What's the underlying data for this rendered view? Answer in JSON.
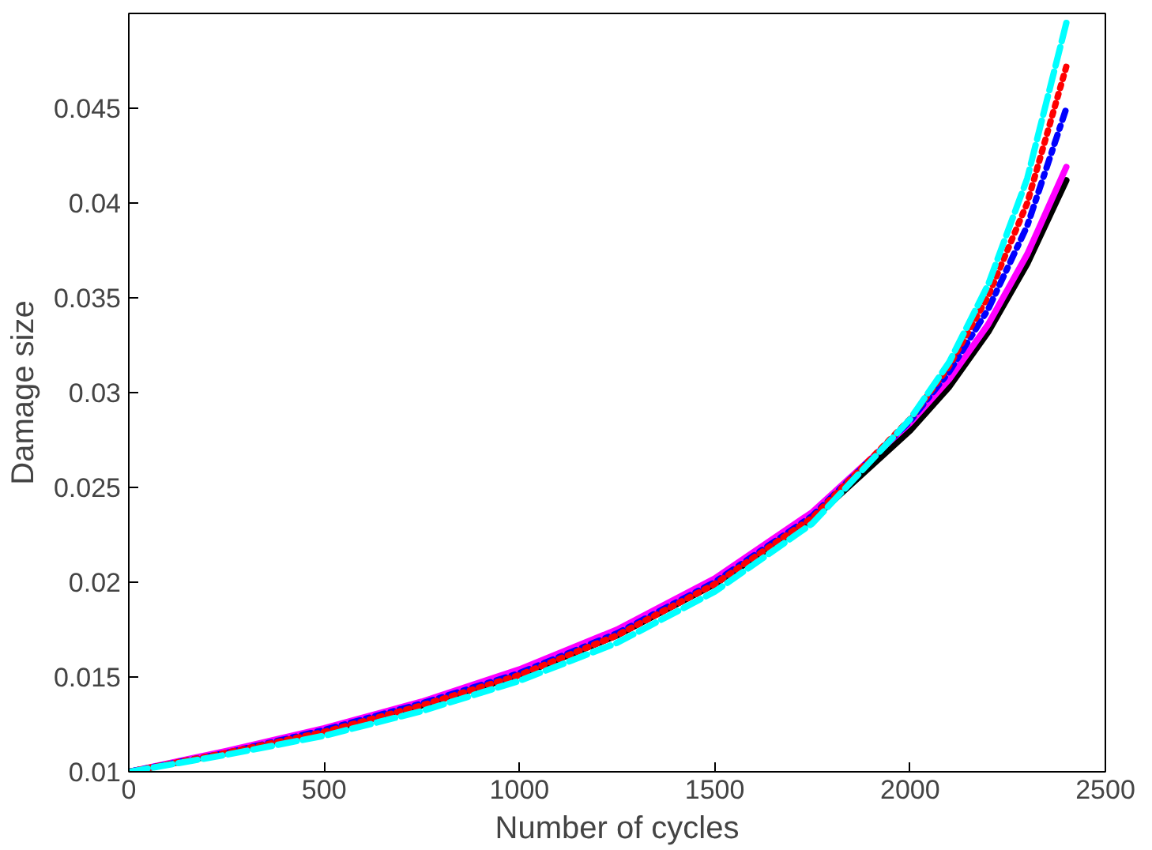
{
  "chart_data": {
    "type": "line",
    "xlabel": "Number of cycles",
    "ylabel": "Damage size",
    "x": [
      0,
      250,
      500,
      750,
      1000,
      1250,
      1500,
      1750,
      2000,
      2100,
      2200,
      2300,
      2400
    ],
    "xlim": [
      0,
      2500
    ],
    "xticks": [
      0,
      500,
      1000,
      1500,
      2000,
      2500
    ],
    "ylim": [
      0.01,
      0.05
    ],
    "yticks": [
      0.01,
      0.015,
      0.02,
      0.025,
      0.03,
      0.035,
      0.04,
      0.045
    ],
    "grid": false,
    "series": [
      {
        "color": "#000000",
        "line_style": "solid",
        "values": [
          0.01,
          0.011,
          0.0121,
          0.0135,
          0.0151,
          0.0172,
          0.0199,
          0.0233,
          0.028,
          0.0303,
          0.0332,
          0.0368,
          0.0412
        ]
      },
      {
        "color": "#ff00ff",
        "line_style": "solid",
        "values": [
          0.01,
          0.0111,
          0.0123,
          0.0137,
          0.0154,
          0.0175,
          0.0202,
          0.0237,
          0.0284,
          0.0307,
          0.0336,
          0.0373,
          0.0419
        ]
      },
      {
        "color": "#0000ff",
        "line_style": "dashdot",
        "values": [
          0.01,
          0.011,
          0.0122,
          0.0136,
          0.0152,
          0.0173,
          0.02,
          0.0235,
          0.0285,
          0.0311,
          0.0344,
          0.0388,
          0.045
        ]
      },
      {
        "color": "#ff0000",
        "line_style": "dotted",
        "values": [
          0.01,
          0.011,
          0.0121,
          0.0135,
          0.0151,
          0.0172,
          0.0199,
          0.0234,
          0.0286,
          0.0314,
          0.0351,
          0.04,
          0.0472
        ]
      },
      {
        "color": "#00ffff",
        "line_style": "dashed",
        "values": [
          0.01,
          0.0109,
          0.0119,
          0.0132,
          0.0148,
          0.0168,
          0.0195,
          0.0231,
          0.0286,
          0.0316,
          0.0357,
          0.0413,
          0.0495
        ]
      }
    ]
  }
}
